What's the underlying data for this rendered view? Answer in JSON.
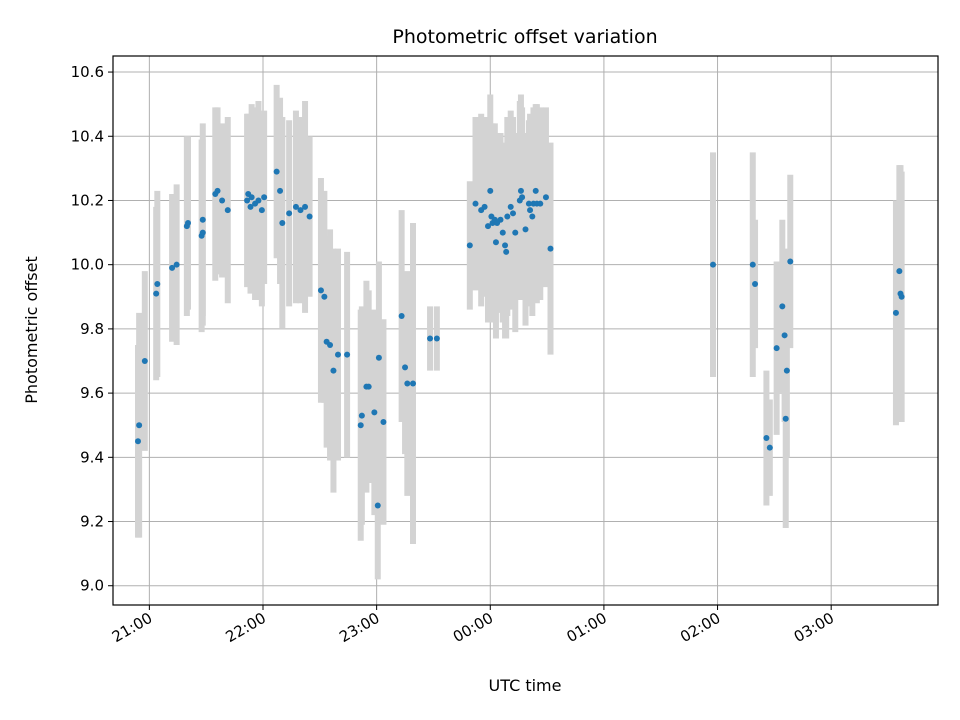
{
  "chart_data": {
    "type": "scatter",
    "title": "Photometric offset variation",
    "xlabel": "UTC time",
    "ylabel": "Photometric offset",
    "x_unit": "UTC time of night (hours; values 24+ fall after midnight)",
    "xlim": [
      20.68,
      27.94
    ],
    "ylim": [
      8.94,
      10.65
    ],
    "grid": true,
    "x_ticks": [
      {
        "value": 21,
        "label": "21:00"
      },
      {
        "value": 22,
        "label": "22:00"
      },
      {
        "value": 23,
        "label": "23:00"
      },
      {
        "value": 24,
        "label": "00:00"
      },
      {
        "value": 25,
        "label": "01:00"
      },
      {
        "value": 26,
        "label": "02:00"
      },
      {
        "value": 27,
        "label": "03:00"
      }
    ],
    "y_ticks": [
      {
        "value": 9.0,
        "label": "9.0"
      },
      {
        "value": 9.2,
        "label": "9.2"
      },
      {
        "value": 9.4,
        "label": "9.4"
      },
      {
        "value": 9.6,
        "label": "9.6"
      },
      {
        "value": 9.8,
        "label": "9.8"
      },
      {
        "value": 10.0,
        "label": "10.0"
      },
      {
        "value": 10.2,
        "label": "10.2"
      },
      {
        "value": 10.4,
        "label": "10.4"
      },
      {
        "value": 10.6,
        "label": "10.6"
      }
    ],
    "colors": {
      "marker": "#1f77b4",
      "errorbar": "#d3d3d3",
      "grid": "#b0b0b0"
    },
    "series": [
      {
        "points": [
          [
            20.9,
            9.45,
            0.3
          ],
          [
            20.91,
            9.5,
            0.35
          ],
          [
            20.96,
            9.7,
            0.28
          ],
          [
            21.06,
            9.91,
            0.27
          ],
          [
            21.07,
            9.94,
            0.29
          ],
          [
            21.2,
            9.99,
            0.23
          ],
          [
            21.24,
            10.0,
            0.25
          ],
          [
            21.33,
            10.12,
            0.28
          ],
          [
            21.34,
            10.13,
            0.27
          ],
          [
            21.46,
            10.09,
            0.3
          ],
          [
            21.47,
            10.1,
            0.29
          ],
          [
            21.47,
            10.14,
            0.3
          ],
          [
            21.58,
            10.22,
            0.27
          ],
          [
            21.6,
            10.23,
            0.26
          ],
          [
            21.64,
            10.2,
            0.24
          ],
          [
            21.69,
            10.17,
            0.29
          ],
          [
            21.86,
            10.2,
            0.27
          ],
          [
            21.87,
            10.22,
            0.25
          ],
          [
            21.89,
            10.18,
            0.27
          ],
          [
            21.9,
            10.21,
            0.29
          ],
          [
            21.93,
            10.19,
            0.3
          ],
          [
            21.96,
            10.2,
            0.31
          ],
          [
            21.99,
            10.17,
            0.3
          ],
          [
            22.01,
            10.21,
            0.27
          ],
          [
            22.12,
            10.29,
            0.27
          ],
          [
            22.15,
            10.23,
            0.29
          ],
          [
            22.17,
            10.13,
            0.33
          ],
          [
            22.23,
            10.16,
            0.29
          ],
          [
            22.29,
            10.18,
            0.3
          ],
          [
            22.33,
            10.17,
            0.29
          ],
          [
            22.37,
            10.18,
            0.33
          ],
          [
            22.41,
            10.15,
            0.25
          ],
          [
            22.51,
            9.92,
            0.35
          ],
          [
            22.54,
            9.9,
            0.33
          ],
          [
            22.56,
            9.76,
            0.33
          ],
          [
            22.59,
            9.75,
            0.36
          ],
          [
            22.62,
            9.67,
            0.38
          ],
          [
            22.66,
            9.72,
            0.33
          ],
          [
            22.74,
            9.72,
            0.32
          ],
          [
            22.86,
            9.5,
            0.36
          ],
          [
            22.87,
            9.53,
            0.34
          ],
          [
            22.91,
            9.62,
            0.33
          ],
          [
            22.93,
            9.62,
            0.3
          ],
          [
            22.98,
            9.54,
            0.32
          ],
          [
            23.01,
            9.25,
            0.23
          ],
          [
            23.02,
            9.71,
            0.3
          ],
          [
            23.06,
            9.51,
            0.32
          ],
          [
            23.22,
            9.84,
            0.33
          ],
          [
            23.25,
            9.68,
            0.27
          ],
          [
            23.27,
            9.63,
            0.35
          ],
          [
            23.32,
            9.63,
            0.5
          ],
          [
            23.47,
            9.77,
            0.1
          ],
          [
            23.53,
            9.77,
            0.1
          ],
          [
            23.82,
            10.06,
            0.2
          ],
          [
            23.87,
            10.19,
            0.27
          ],
          [
            23.92,
            10.17,
            0.3
          ],
          [
            23.95,
            10.18,
            0.28
          ],
          [
            23.98,
            10.12,
            0.3
          ],
          [
            24.0,
            10.23,
            0.3
          ],
          [
            24.01,
            10.15,
            0.28
          ],
          [
            24.02,
            10.13,
            0.31
          ],
          [
            24.04,
            10.14,
            0.3
          ],
          [
            24.05,
            10.07,
            0.3
          ],
          [
            24.06,
            10.13,
            0.28
          ],
          [
            24.09,
            10.14,
            0.27
          ],
          [
            24.11,
            10.1,
            0.28
          ],
          [
            24.13,
            10.06,
            0.29
          ],
          [
            24.14,
            10.04,
            0.27
          ],
          [
            24.15,
            10.15,
            0.31
          ],
          [
            24.18,
            10.18,
            0.3
          ],
          [
            24.2,
            10.16,
            0.3
          ],
          [
            24.22,
            10.1,
            0.31
          ],
          [
            24.26,
            10.2,
            0.31
          ],
          [
            24.27,
            10.23,
            0.3
          ],
          [
            24.28,
            10.21,
            0.28
          ],
          [
            24.31,
            10.11,
            0.3
          ],
          [
            24.34,
            10.19,
            0.26
          ],
          [
            24.35,
            10.17,
            0.3
          ],
          [
            24.37,
            10.15,
            0.31
          ],
          [
            24.38,
            10.19,
            0.3
          ],
          [
            24.4,
            10.23,
            0.27
          ],
          [
            24.41,
            10.19,
            0.31
          ],
          [
            24.44,
            10.19,
            0.3
          ],
          [
            24.49,
            10.21,
            0.28
          ],
          [
            24.53,
            10.05,
            0.33
          ],
          [
            25.96,
            10.0,
            0.35
          ],
          [
            26.31,
            10.0,
            0.35
          ],
          [
            26.33,
            9.94,
            0.2
          ],
          [
            26.43,
            9.46,
            0.21
          ],
          [
            26.46,
            9.43,
            0.15
          ],
          [
            26.52,
            9.74,
            0.27
          ],
          [
            26.57,
            9.87,
            0.27
          ],
          [
            26.59,
            9.78,
            0.27
          ],
          [
            26.6,
            9.52,
            0.34
          ],
          [
            26.61,
            9.67,
            0.27
          ],
          [
            26.64,
            10.01,
            0.27
          ],
          [
            27.57,
            9.85,
            0.35
          ],
          [
            27.6,
            9.98,
            0.33
          ],
          [
            27.61,
            9.91,
            0.4
          ],
          [
            27.62,
            9.9,
            0.39
          ]
        ]
      }
    ]
  }
}
